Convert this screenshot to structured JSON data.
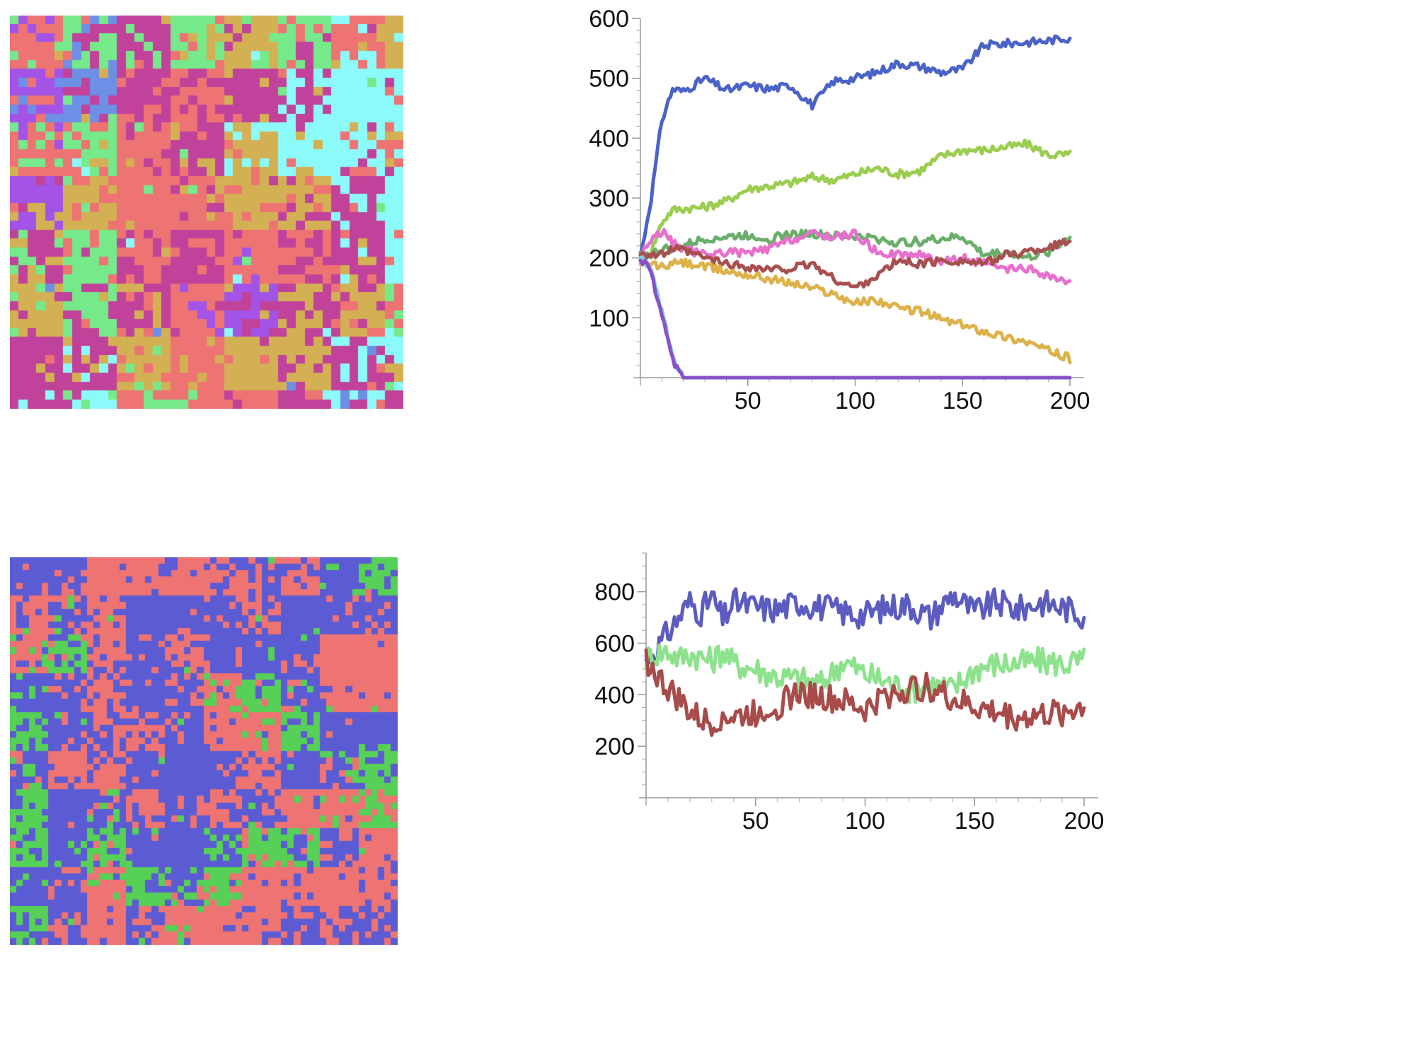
{
  "panels": {
    "top_grid": {
      "rows": 44,
      "cols": 44,
      "seed": 7,
      "palette": [
        "#D4B054",
        "#EE7373",
        "#C1429A",
        "#8DFAFA",
        "#76E98A",
        "#6E8FE6",
        "#A354E6"
      ],
      "weights": [
        0.18,
        0.3,
        0.22,
        0.14,
        0.1,
        0.04,
        0.02
      ]
    },
    "bottom_grid": {
      "rows": 60,
      "cols": 60,
      "seed": 23,
      "palette": [
        "#5B5BD4",
        "#EE7373",
        "#56D056"
      ],
      "weights": [
        0.46,
        0.4,
        0.14
      ]
    }
  },
  "chart_data": [
    {
      "type": "line",
      "title": "",
      "xlabel": "",
      "ylabel": "",
      "xlim": [
        0,
        200
      ],
      "ylim": [
        0,
        600
      ],
      "xticks": [
        "50",
        "100",
        "150",
        "200"
      ],
      "yticks": [
        "100",
        "200",
        "300",
        "400",
        "500",
        "600"
      ],
      "x": [
        0,
        5,
        10,
        15,
        20,
        30,
        40,
        50,
        60,
        70,
        80,
        90,
        100,
        110,
        120,
        130,
        140,
        150,
        160,
        170,
        180,
        190,
        200
      ],
      "series": [
        {
          "color": "#4B63C8",
          "values": [
            200,
            300,
            430,
            482,
            478,
            500,
            480,
            488,
            482,
            488,
            455,
            495,
            500,
            510,
            525,
            520,
            510,
            515,
            555,
            558,
            560,
            563,
            568
          ]
        },
        {
          "color": "#9ACD50",
          "values": [
            200,
            210,
            260,
            280,
            282,
            285,
            295,
            315,
            320,
            325,
            335,
            330,
            340,
            350,
            340,
            345,
            370,
            380,
            380,
            385,
            390,
            372,
            372
          ]
        },
        {
          "color": "#6BAE6B",
          "values": [
            205,
            205,
            215,
            215,
            220,
            232,
            235,
            238,
            232,
            240,
            240,
            236,
            236,
            232,
            225,
            228,
            232,
            235,
            205,
            210,
            200,
            210,
            235
          ]
        },
        {
          "color": "#E670CC",
          "values": [
            205,
            230,
            245,
            225,
            215,
            205,
            210,
            208,
            215,
            230,
            240,
            235,
            240,
            210,
            205,
            205,
            195,
            200,
            190,
            180,
            182,
            170,
            155
          ]
        },
        {
          "color": "#A85050",
          "values": [
            210,
            205,
            205,
            215,
            212,
            200,
            190,
            185,
            180,
            182,
            190,
            165,
            150,
            170,
            195,
            190,
            195,
            195,
            190,
            205,
            210,
            218,
            228
          ]
        },
        {
          "color": "#DDB24B",
          "values": [
            185,
            190,
            185,
            190,
            192,
            185,
            178,
            172,
            165,
            158,
            150,
            140,
            125,
            130,
            115,
            112,
            98,
            88,
            78,
            68,
            60,
            45,
            32
          ]
        },
        {
          "color": "#7ECDE6",
          "values": [
            200,
            180,
            110,
            35,
            0,
            0,
            0,
            0,
            0,
            0,
            0,
            0,
            0,
            0,
            0,
            0,
            0,
            0,
            0,
            0,
            0,
            0,
            0
          ]
        },
        {
          "color": "#8A50C8",
          "values": [
            200,
            175,
            100,
            30,
            0,
            0,
            0,
            0,
            0,
            0,
            0,
            0,
            0,
            0,
            0,
            0,
            0,
            0,
            0,
            0,
            0,
            0,
            0
          ]
        }
      ]
    },
    {
      "type": "line",
      "title": "",
      "xlabel": "",
      "ylabel": "",
      "xlim": [
        0,
        200
      ],
      "ylim": [
        0,
        950
      ],
      "xticks": [
        "50",
        "100",
        "150",
        "200"
      ],
      "yticks": [
        "200",
        "400",
        "600",
        "800"
      ],
      "x": [
        0,
        5,
        10,
        15,
        20,
        25,
        30,
        35,
        40,
        50,
        60,
        70,
        80,
        90,
        100,
        110,
        120,
        130,
        140,
        150,
        160,
        170,
        180,
        190,
        200
      ],
      "series": [
        {
          "color": "#5C5CC0",
          "values": [
            540,
            580,
            640,
            700,
            760,
            720,
            780,
            690,
            760,
            740,
            730,
            760,
            740,
            720,
            710,
            740,
            750,
            700,
            790,
            720,
            760,
            730,
            760,
            740,
            710
          ]
        },
        {
          "color": "#8EE28E",
          "values": [
            540,
            560,
            570,
            540,
            560,
            545,
            530,
            570,
            520,
            500,
            470,
            460,
            440,
            530,
            480,
            450,
            420,
            440,
            420,
            500,
            520,
            520,
            530,
            520,
            530
          ]
        },
        {
          "color": "#A84B4B",
          "values": [
            540,
            470,
            420,
            380,
            330,
            300,
            290,
            320,
            310,
            330,
            360,
            410,
            390,
            370,
            340,
            400,
            420,
            430,
            380,
            350,
            330,
            310,
            320,
            330,
            355
          ]
        }
      ]
    }
  ]
}
